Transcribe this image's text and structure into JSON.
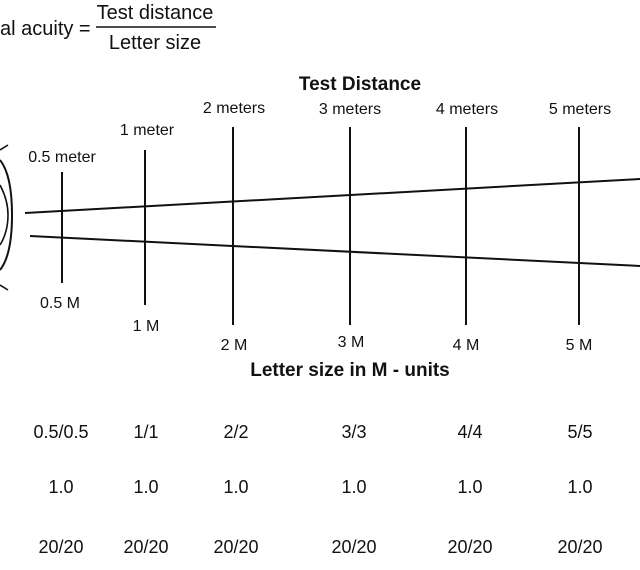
{
  "formula": {
    "lhs": "al acuity =",
    "numerator": "Test distance",
    "denominator": "Letter size"
  },
  "headings": {
    "test_distance": "Test Distance",
    "letter_size": "Letter size in M - units"
  },
  "columns": [
    {
      "distance": "0.5 meter",
      "letter_size": "0.5 M",
      "fraction": "0.5/0.5",
      "decimal": "1.0",
      "snellen": "20/20"
    },
    {
      "distance": "1 meter",
      "letter_size": "1 M",
      "fraction": "1/1",
      "decimal": "1.0",
      "snellen": "20/20"
    },
    {
      "distance": "2 meters",
      "letter_size": "2 M",
      "fraction": "2/2",
      "decimal": "1.0",
      "snellen": "20/20"
    },
    {
      "distance": "3 meters",
      "letter_size": "3 M",
      "fraction": "3/3",
      "decimal": "1.0",
      "snellen": "20/20"
    },
    {
      "distance": "4 meters",
      "letter_size": "4 M",
      "fraction": "4/4",
      "decimal": "1.0",
      "snellen": "20/20"
    },
    {
      "distance": "5 meters",
      "letter_size": "5 M",
      "fraction": "5/5",
      "decimal": "1.0",
      "snellen": "20/20"
    }
  ]
}
